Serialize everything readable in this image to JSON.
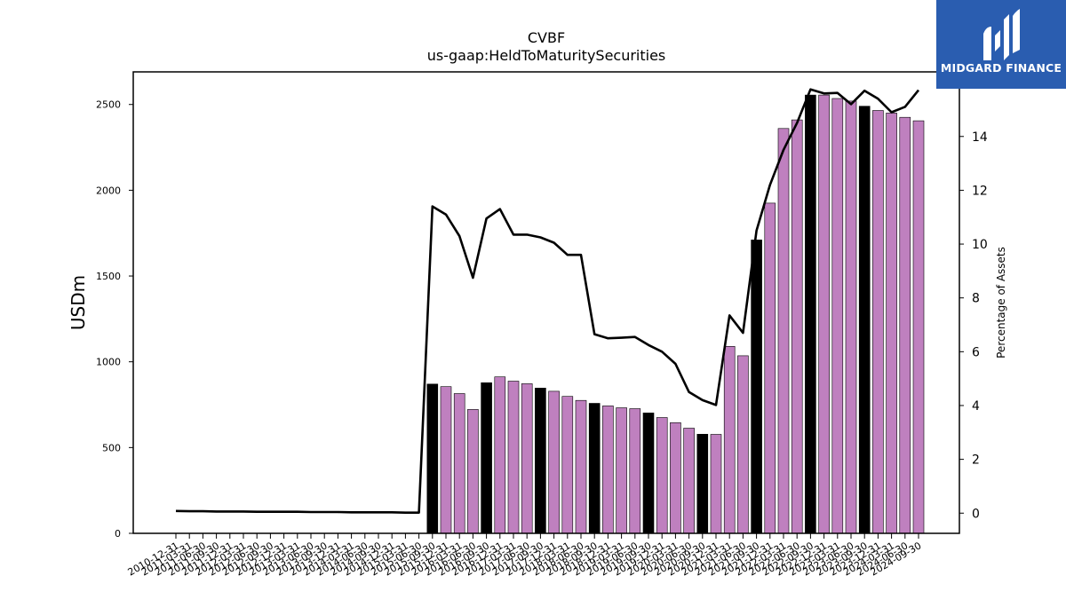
{
  "chart_data": {
    "type": "bar",
    "title": "CVBF",
    "subtitle": "us-gaap:HeldToMaturitySecurities",
    "ylabel": "USDm",
    "y2label": "Percentage of Assets",
    "ylim": [
      0,
      2690
    ],
    "y2lim": [
      -0.75,
      16.4
    ],
    "yticks": [
      0,
      500,
      1000,
      1500,
      2000,
      2500
    ],
    "y2ticks": [
      0,
      2,
      4,
      6,
      8,
      10,
      12,
      14
    ],
    "categories": [
      "2010-12-31",
      "2011-03-31",
      "2011-06-30",
      "2011-09-30",
      "2011-12-31",
      "2012-03-31",
      "2012-06-30",
      "2012-09-30",
      "2012-12-31",
      "2013-03-31",
      "2013-06-30",
      "2013-09-30",
      "2013-12-31",
      "2014-03-31",
      "2014-06-30",
      "2014-09-30",
      "2014-12-31",
      "2015-03-31",
      "2015-06-30",
      "2015-09-30",
      "2015-12-31",
      "2016-03-31",
      "2016-06-30",
      "2016-09-30",
      "2016-12-31",
      "2017-03-31",
      "2017-06-30",
      "2017-09-30",
      "2017-12-31",
      "2018-03-31",
      "2018-06-30",
      "2018-09-30",
      "2018-12-31",
      "2019-03-31",
      "2019-06-30",
      "2019-09-30",
      "2019-12-31",
      "2020-03-31",
      "2020-06-30",
      "2020-09-30",
      "2020-12-31",
      "2021-03-31",
      "2021-06-30",
      "2021-09-30",
      "2021-12-31",
      "2022-03-31",
      "2022-06-30",
      "2022-09-30",
      "2022-12-31",
      "2023-03-31",
      "2023-06-30",
      "2023-09-30",
      "2023-12-31",
      "2024-03-31",
      "2024-06-30",
      "2024-09-30"
    ],
    "series": [
      {
        "name": "",
        "kind": "bar",
        "axis": "left",
        "values": [
          null,
          null,
          null,
          null,
          null,
          null,
          null,
          null,
          null,
          null,
          null,
          null,
          null,
          null,
          null,
          null,
          null,
          null,
          null,
          870,
          855,
          815,
          722,
          878,
          912,
          887,
          872,
          847,
          828,
          798,
          775,
          758,
          743,
          732,
          727,
          702,
          675,
          645,
          613,
          578,
          577,
          1090,
          1035,
          1710,
          1925,
          2360,
          2410,
          2555,
          2555,
          2535,
          2520,
          2490,
          2465,
          2450,
          2425,
          2405
        ],
        "color": "#bf80bf",
        "highlight_color": "#000000",
        "highlight_categories": [
          "2015-09-30",
          "2016-09-30",
          "2017-09-30",
          "2018-09-30",
          "2019-09-30",
          "2020-09-30",
          "2021-09-30",
          "2022-09-30",
          "2023-09-30"
        ]
      },
      {
        "name": "",
        "kind": "line",
        "axis": "right",
        "color": "#000000",
        "values": [
          0.08,
          0.07,
          0.07,
          0.06,
          0.06,
          0.06,
          0.05,
          0.05,
          0.05,
          0.05,
          0.04,
          0.04,
          0.04,
          0.03,
          0.03,
          0.03,
          0.03,
          0.02,
          0.02,
          11.4,
          11.1,
          10.3,
          8.75,
          10.95,
          11.3,
          10.35,
          10.35,
          10.25,
          10.05,
          9.6,
          9.6,
          6.65,
          6.5,
          6.52,
          6.55,
          6.25,
          6.0,
          5.55,
          4.5,
          4.2,
          4.02,
          7.35,
          6.7,
          10.5,
          12.2,
          13.5,
          14.5,
          15.75,
          15.6,
          15.62,
          15.2,
          15.7,
          15.4,
          14.9,
          15.1,
          15.72
        ]
      }
    ],
    "grid": false,
    "legend": "none"
  },
  "logo": {
    "name": "MIDGARD FINANCE",
    "icon": "midgard-finance-logo-icon",
    "background": "#2a5db0"
  }
}
